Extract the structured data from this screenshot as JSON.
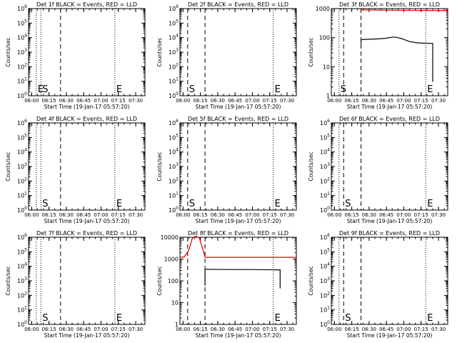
{
  "figure": {
    "xtick_labels": [
      "06:00",
      "06:15",
      "06:30",
      "06:45",
      "07:00",
      "07:15",
      "07:30"
    ],
    "xlabel": "Start Time (19-Jan-17 05:57:20)",
    "ylabel": "Counts/sec",
    "colors": {
      "events": "#000000",
      "lld": "#dd0000"
    }
  },
  "chart_data": [
    {
      "type": "line",
      "title": "Det 1f BLACK = Events, RED = LLD",
      "xlabel": "Start Time (19-Jan-17 05:57:20)",
      "ylabel": "Counts/sec",
      "xlim": [
        "05:57:20",
        "07:38:00"
      ],
      "x_ticks": [
        "06:00",
        "06:15",
        "06:30",
        "06:45",
        "07:00",
        "07:15",
        "07:30"
      ],
      "y_scale": "log",
      "ylim": [
        1,
        1000000
      ],
      "y_ticks": [
        {
          "label": "10⁰",
          "base": "10",
          "exp": "0",
          "value": 1
        },
        {
          "label": "10¹",
          "base": "10",
          "exp": "1",
          "value": 10
        },
        {
          "label": "10²",
          "base": "10",
          "exp": "2",
          "value": 100
        },
        {
          "label": "10³",
          "base": "10",
          "exp": "3",
          "value": 1000
        },
        {
          "label": "10⁴",
          "base": "10",
          "exp": "4",
          "value": 10000
        },
        {
          "label": "10⁵",
          "base": "10",
          "exp": "5",
          "value": 100000
        },
        {
          "label": "10⁶",
          "base": "10",
          "exp": "6",
          "value": 1000000
        }
      ],
      "markers": [
        {
          "time": "06:04",
          "style": "dotted",
          "label": "E"
        },
        {
          "time": "06:08",
          "style": "dotted",
          "label": "S"
        },
        {
          "time": "06:25",
          "style": "dashed",
          "label": ""
        },
        {
          "time": "07:12",
          "style": "dotted",
          "label": "E"
        }
      ],
      "series": []
    },
    {
      "type": "line",
      "title": "Det 2f BLACK = Events, RED = LLD",
      "xlabel": "Start Time (19-Jan-17 05:57:20)",
      "ylabel": "Counts/sec",
      "xlim": [
        "05:57:20",
        "07:38:00"
      ],
      "x_ticks": [
        "06:00",
        "06:15",
        "06:30",
        "06:45",
        "07:00",
        "07:15",
        "07:30"
      ],
      "y_scale": "log",
      "ylim": [
        1,
        1000000
      ],
      "y_ticks": [
        {
          "label": "10⁰",
          "base": "10",
          "exp": "0",
          "value": 1
        },
        {
          "label": "10¹",
          "base": "10",
          "exp": "1",
          "value": 10
        },
        {
          "label": "10²",
          "base": "10",
          "exp": "2",
          "value": 100
        },
        {
          "label": "10³",
          "base": "10",
          "exp": "3",
          "value": 1000
        },
        {
          "label": "10⁴",
          "base": "10",
          "exp": "4",
          "value": 10000
        },
        {
          "label": "10⁵",
          "base": "10",
          "exp": "5",
          "value": 100000
        },
        {
          "label": "10⁶",
          "base": "10",
          "exp": "6",
          "value": 1000000
        }
      ],
      "markers": [
        {
          "time": "06:04",
          "style": "dashed",
          "label": "S"
        },
        {
          "time": "06:19",
          "style": "dashed",
          "label": ""
        },
        {
          "time": "07:18",
          "style": "dotted",
          "label": "E"
        }
      ],
      "series": []
    },
    {
      "type": "line",
      "title": "Det 3f BLACK = Events, RED = LLD",
      "xlabel": "Start Time (19-Jan-17 05:57:20)",
      "ylabel": "Counts/sec",
      "xlim": [
        "05:57:20",
        "07:38:00"
      ],
      "x_ticks": [
        "06:00",
        "06:15",
        "06:30",
        "06:45",
        "07:00",
        "07:15",
        "07:30"
      ],
      "y_scale": "log",
      "ylim": [
        1,
        1000
      ],
      "y_ticks": [
        {
          "label": "1",
          "base": "1",
          "exp": "",
          "value": 1
        },
        {
          "label": "10",
          "base": "10",
          "exp": "",
          "value": 10
        },
        {
          "label": "100",
          "base": "100",
          "exp": "",
          "value": 100
        },
        {
          "label": "1000",
          "base": "1000",
          "exp": "",
          "value": 1000
        }
      ],
      "markers": [
        {
          "time": "06:04",
          "style": "dotted",
          "label": "S"
        },
        {
          "time": "06:08",
          "style": "dashed",
          "label": ""
        },
        {
          "time": "06:23",
          "style": "dashed",
          "label": ""
        },
        {
          "time": "07:19",
          "style": "dotted",
          "label": "E"
        }
      ],
      "series": [
        {
          "color": "#dd0000",
          "points": [
            [
              "06:23",
              900
            ],
            [
              "07:38",
              850
            ]
          ]
        },
        {
          "color": "#000000",
          "points": [
            [
              "06:23",
              60
            ],
            [
              "06:23",
              85
            ],
            [
              "06:30",
              88
            ],
            [
              "06:37",
              90
            ],
            [
              "06:44",
              95
            ],
            [
              "06:51",
              105
            ],
            [
              "06:54",
              102
            ],
            [
              "06:59",
              90
            ],
            [
              "07:05",
              73
            ],
            [
              "07:12",
              66
            ],
            [
              "07:19",
              64
            ],
            [
              "07:25",
              63
            ],
            [
              "07:25",
              3
            ]
          ]
        }
      ]
    },
    {
      "type": "line",
      "title": "Det 4f BLACK = Events, RED = LLD",
      "xlabel": "Start Time (19-Jan-17 05:57:20)",
      "ylabel": "Counts/sec",
      "xlim": [
        "05:57:20",
        "07:38:00"
      ],
      "x_ticks": [
        "06:00",
        "06:15",
        "06:30",
        "06:45",
        "07:00",
        "07:15",
        "07:30"
      ],
      "y_scale": "log",
      "ylim": [
        1,
        1000000
      ],
      "y_ticks": [
        {
          "label": "10⁰",
          "base": "10",
          "exp": "0",
          "value": 1
        },
        {
          "label": "10¹",
          "base": "10",
          "exp": "1",
          "value": 10
        },
        {
          "label": "10²",
          "base": "10",
          "exp": "2",
          "value": 100
        },
        {
          "label": "10³",
          "base": "10",
          "exp": "3",
          "value": 1000
        },
        {
          "label": "10⁴",
          "base": "10",
          "exp": "4",
          "value": 10000
        },
        {
          "label": "10⁵",
          "base": "10",
          "exp": "5",
          "value": 100000
        },
        {
          "label": "10⁶",
          "base": "10",
          "exp": "6",
          "value": 1000000
        }
      ],
      "markers": [
        {
          "time": "06:04",
          "style": "dotted",
          "label": ""
        },
        {
          "time": "06:08",
          "style": "dotted",
          "label": "S"
        },
        {
          "time": "06:25",
          "style": "dashed",
          "label": ""
        },
        {
          "time": "07:12",
          "style": "dotted",
          "label": "E"
        }
      ],
      "series": []
    },
    {
      "type": "line",
      "title": "Det 5f BLACK = Events, RED = LLD",
      "xlabel": "Start Time (19-Jan-17 05:57:20)",
      "ylabel": "Counts/sec",
      "xlim": [
        "05:57:20",
        "07:38:00"
      ],
      "x_ticks": [
        "06:00",
        "06:15",
        "06:30",
        "06:45",
        "07:00",
        "07:15",
        "07:30"
      ],
      "y_scale": "log",
      "ylim": [
        1,
        1000000
      ],
      "y_ticks": [
        {
          "label": "10⁰",
          "base": "10",
          "exp": "0",
          "value": 1
        },
        {
          "label": "10¹",
          "base": "10",
          "exp": "1",
          "value": 10
        },
        {
          "label": "10²",
          "base": "10",
          "exp": "2",
          "value": 100
        },
        {
          "label": "10³",
          "base": "10",
          "exp": "3",
          "value": 1000
        },
        {
          "label": "10⁴",
          "base": "10",
          "exp": "4",
          "value": 10000
        },
        {
          "label": "10⁵",
          "base": "10",
          "exp": "5",
          "value": 100000
        },
        {
          "label": "10⁶",
          "base": "10",
          "exp": "6",
          "value": 1000000
        }
      ],
      "markers": [
        {
          "time": "06:04",
          "style": "dashed",
          "label": "S"
        },
        {
          "time": "06:19",
          "style": "dashed",
          "label": ""
        },
        {
          "time": "07:18",
          "style": "dotted",
          "label": "E"
        }
      ],
      "series": []
    },
    {
      "type": "line",
      "title": "Det 6f BLACK = Events, RED = LLD",
      "xlabel": "Start Time (19-Jan-17 05:57:20)",
      "ylabel": "Counts/sec",
      "xlim": [
        "05:57:20",
        "07:38:00"
      ],
      "x_ticks": [
        "06:00",
        "06:15",
        "06:30",
        "06:45",
        "07:00",
        "07:15",
        "07:30"
      ],
      "y_scale": "log",
      "ylim": [
        1,
        1000000
      ],
      "y_ticks": [
        {
          "label": "10⁰",
          "base": "10",
          "exp": "0",
          "value": 1
        },
        {
          "label": "10¹",
          "base": "10",
          "exp": "1",
          "value": 10
        },
        {
          "label": "10²",
          "base": "10",
          "exp": "2",
          "value": 100
        },
        {
          "label": "10³",
          "base": "10",
          "exp": "3",
          "value": 1000
        },
        {
          "label": "10⁴",
          "base": "10",
          "exp": "4",
          "value": 10000
        },
        {
          "label": "10⁵",
          "base": "10",
          "exp": "5",
          "value": 100000
        },
        {
          "label": "10⁶",
          "base": "10",
          "exp": "6",
          "value": 1000000
        }
      ],
      "markers": [
        {
          "time": "06:04",
          "style": "dotted",
          "label": ""
        },
        {
          "time": "06:08",
          "style": "dashed",
          "label": "S"
        },
        {
          "time": "06:23",
          "style": "dashed",
          "label": ""
        },
        {
          "time": "07:19",
          "style": "dotted",
          "label": "E"
        }
      ],
      "series": []
    },
    {
      "type": "line",
      "title": "Det 7f BLACK = Events, RED = LLD",
      "xlabel": "Start Time (19-Jan-17 05:57:20)",
      "ylabel": "Counts/sec",
      "xlim": [
        "05:57:20",
        "07:38:00"
      ],
      "x_ticks": [
        "06:00",
        "06:15",
        "06:30",
        "06:45",
        "07:00",
        "07:15",
        "07:30"
      ],
      "y_scale": "log",
      "ylim": [
        1,
        1000000
      ],
      "y_ticks": [
        {
          "label": "10⁰",
          "base": "10",
          "exp": "0",
          "value": 1
        },
        {
          "label": "10¹",
          "base": "10",
          "exp": "1",
          "value": 10
        },
        {
          "label": "10²",
          "base": "10",
          "exp": "2",
          "value": 100
        },
        {
          "label": "10³",
          "base": "10",
          "exp": "3",
          "value": 1000
        },
        {
          "label": "10⁴",
          "base": "10",
          "exp": "4",
          "value": 10000
        },
        {
          "label": "10⁵",
          "base": "10",
          "exp": "5",
          "value": 100000
        },
        {
          "label": "10⁶",
          "base": "10",
          "exp": "6",
          "value": 1000000
        }
      ],
      "markers": [
        {
          "time": "06:04",
          "style": "dotted",
          "label": ""
        },
        {
          "time": "06:08",
          "style": "dotted",
          "label": "S"
        },
        {
          "time": "06:25",
          "style": "dashed",
          "label": ""
        },
        {
          "time": "07:12",
          "style": "dotted",
          "label": "E"
        }
      ],
      "series": []
    },
    {
      "type": "line",
      "title": "Det 8f BLACK = Events, RED = LLD",
      "xlabel": "Start Time (19-Jan-17 05:57:20)",
      "ylabel": "Counts/sec",
      "xlim": [
        "05:57:20",
        "07:38:00"
      ],
      "x_ticks": [
        "06:00",
        "06:15",
        "06:30",
        "06:45",
        "07:00",
        "07:15",
        "07:30"
      ],
      "y_scale": "log",
      "ylim": [
        1,
        10000
      ],
      "y_ticks": [
        {
          "label": "1",
          "base": "1",
          "exp": "",
          "value": 1
        },
        {
          "label": "10",
          "base": "10",
          "exp": "",
          "value": 10
        },
        {
          "label": "100",
          "base": "100",
          "exp": "",
          "value": 100
        },
        {
          "label": "1000",
          "base": "1000",
          "exp": "",
          "value": 1000
        },
        {
          "label": "10000",
          "base": "10000",
          "exp": "",
          "value": 10000
        }
      ],
      "markers": [
        {
          "time": "06:04",
          "style": "dashed",
          "label": ""
        },
        {
          "time": "06:19",
          "style": "dashed",
          "label": ""
        },
        {
          "time": "07:18",
          "style": "dotted",
          "label": "E"
        }
      ],
      "series": [
        {
          "color": "#dd0000",
          "points": [
            [
              "05:57:20",
              1200
            ],
            [
              "06:01",
              1250
            ],
            [
              "06:05",
              2500
            ],
            [
              "06:08",
              9000
            ],
            [
              "06:11",
              11000
            ],
            [
              "06:14",
              9500
            ],
            [
              "06:17",
              3000
            ],
            [
              "06:19",
              1200
            ],
            [
              "07:38",
              1200
            ]
          ]
        },
        {
          "color": "#000000",
          "points": [
            [
              "06:19",
              60
            ],
            [
              "06:19",
              340
            ],
            [
              "06:40",
              330
            ],
            [
              "07:00",
              330
            ],
            [
              "07:20",
              320
            ],
            [
              "07:24",
              320
            ],
            [
              "07:24",
              45
            ]
          ]
        }
      ]
    },
    {
      "type": "line",
      "title": "Det 9f BLACK = Events, RED = LLD",
      "xlabel": "Start Time (19-Jan-17 05:57:20)",
      "ylabel": "Counts/sec",
      "xlim": [
        "05:57:20",
        "07:38:00"
      ],
      "x_ticks": [
        "06:00",
        "06:15",
        "06:30",
        "06:45",
        "07:00",
        "07:15",
        "07:30"
      ],
      "y_scale": "log",
      "ylim": [
        1,
        1000000
      ],
      "y_ticks": [
        {
          "label": "10⁰",
          "base": "10",
          "exp": "0",
          "value": 1
        },
        {
          "label": "10¹",
          "base": "10",
          "exp": "1",
          "value": 10
        },
        {
          "label": "10²",
          "base": "10",
          "exp": "2",
          "value": 100
        },
        {
          "label": "10³",
          "base": "10",
          "exp": "3",
          "value": 1000
        },
        {
          "label": "10⁴",
          "base": "10",
          "exp": "4",
          "value": 10000
        },
        {
          "label": "10⁵",
          "base": "10",
          "exp": "5",
          "value": 100000
        },
        {
          "label": "10⁶",
          "base": "10",
          "exp": "6",
          "value": 1000000
        }
      ],
      "markers": [
        {
          "time": "06:04",
          "style": "dotted",
          "label": ""
        },
        {
          "time": "06:08",
          "style": "dashed",
          "label": "S"
        },
        {
          "time": "06:23",
          "style": "dashed",
          "label": ""
        },
        {
          "time": "07:19",
          "style": "dotted",
          "label": "E"
        }
      ],
      "series": []
    }
  ]
}
